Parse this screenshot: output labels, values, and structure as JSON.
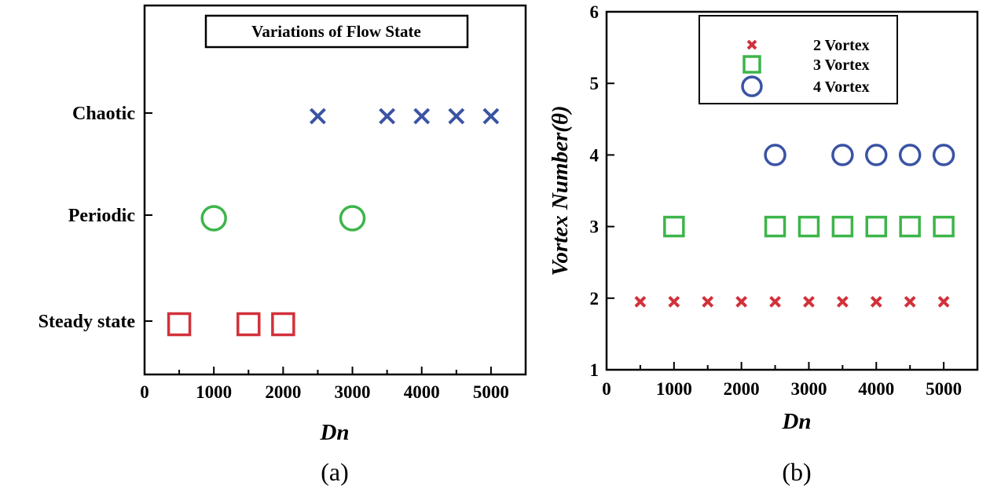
{
  "chart_data": [
    {
      "type": "scatter",
      "panel_label": "(a)",
      "title": "Variations of Flow State",
      "xlabel": "Dn",
      "ylabel": "",
      "xlim": [
        0,
        5500
      ],
      "x_ticks": [
        0,
        1000,
        2000,
        3000,
        4000,
        5000
      ],
      "categories": [
        "Steady state",
        "Periodic",
        "Chaotic"
      ],
      "series": [
        {
          "category": "Steady state",
          "marker": "square",
          "color": "#d2313a",
          "x": [
            500,
            1500,
            2000
          ]
        },
        {
          "category": "Periodic",
          "marker": "circle",
          "color": "#3db54a",
          "x": [
            1000,
            3000
          ]
        },
        {
          "category": "Chaotic",
          "marker": "x",
          "color": "#3a53a4",
          "x": [
            2500,
            3500,
            4000,
            4500,
            5000
          ]
        }
      ],
      "grid": false
    },
    {
      "type": "scatter",
      "panel_label": "(b)",
      "title": "",
      "xlabel": "Dn",
      "ylabel": "Vortex Number(θ)",
      "xlim": [
        0,
        5500
      ],
      "ylim": [
        1,
        6
      ],
      "x_ticks": [
        0,
        1000,
        2000,
        3000,
        4000,
        5000
      ],
      "y_ticks": [
        1,
        2,
        3,
        4,
        5,
        6
      ],
      "legend_position": "top-right",
      "series": [
        {
          "name": "2 Vortex",
          "marker": "x",
          "color": "#d2313a",
          "x": [
            500,
            1000,
            1500,
            2000,
            2500,
            3000,
            3500,
            4000,
            4500,
            5000
          ],
          "y": [
            1.95,
            1.95,
            1.95,
            1.95,
            1.95,
            1.95,
            1.95,
            1.95,
            1.95,
            1.95
          ]
        },
        {
          "name": "3 Vortex",
          "marker": "square",
          "color": "#3db54a",
          "x": [
            1000,
            2500,
            3000,
            3500,
            4000,
            4500,
            5000
          ],
          "y": [
            3,
            3,
            3,
            3,
            3,
            3,
            3
          ]
        },
        {
          "name": "4 Vortex",
          "marker": "circle",
          "color": "#3a53a4",
          "x": [
            2500,
            3500,
            4000,
            4500,
            5000
          ],
          "y": [
            4,
            4,
            4,
            4,
            4
          ]
        }
      ],
      "grid": false
    }
  ]
}
